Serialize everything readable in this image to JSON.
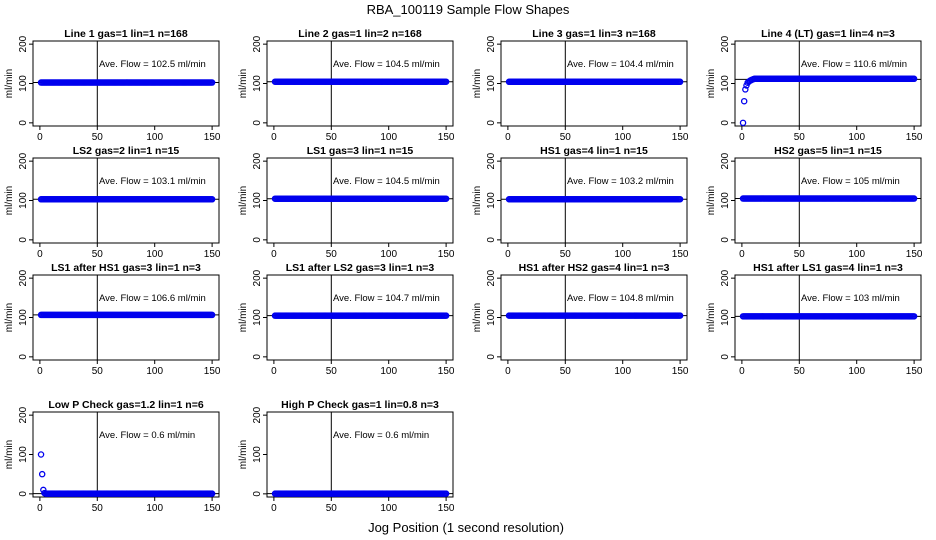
{
  "title": "RBA_100119  Sample Flow Shapes",
  "xlabel": "Jog Position (1 second resolution)",
  "colors": {
    "points": "#0000ee",
    "axes": "#000000",
    "background": "#ffffff"
  },
  "chart_data": [
    {
      "type": "scatter",
      "title": "Line 1 gas=1 lin=1 n=168",
      "ylabel": "ml/min",
      "xlim": [
        0,
        150
      ],
      "ylim": [
        0,
        200
      ],
      "xticks": [
        0,
        50,
        100,
        150
      ],
      "yticks": [
        0,
        100,
        200
      ],
      "vline": 50,
      "hline": 102.5,
      "annotation": "Ave. Flow =  102.5  ml/min",
      "x": [
        1,
        150
      ],
      "y": [
        102.5,
        102.5
      ]
    },
    {
      "type": "scatter",
      "title": "Line 2 gas=1 lin=2 n=168",
      "ylabel": "ml/min",
      "xlim": [
        0,
        150
      ],
      "ylim": [
        0,
        200
      ],
      "xticks": [
        0,
        50,
        100,
        150
      ],
      "yticks": [
        0,
        100,
        200
      ],
      "vline": 50,
      "hline": 104.5,
      "annotation": "Ave. Flow =  104.5  ml/min",
      "x": [
        1,
        150
      ],
      "y": [
        104.5,
        104.5
      ]
    },
    {
      "type": "scatter",
      "title": "Line 3 gas=1 lin=3 n=168",
      "ylabel": "ml/min",
      "xlim": [
        0,
        150
      ],
      "ylim": [
        0,
        200
      ],
      "xticks": [
        0,
        50,
        100,
        150
      ],
      "yticks": [
        0,
        100,
        200
      ],
      "vline": 50,
      "hline": 104.4,
      "annotation": "Ave. Flow =  104.4  ml/min",
      "x": [
        1,
        150
      ],
      "y": [
        104.4,
        104.4
      ]
    },
    {
      "type": "scatter",
      "title": "Line 4 (LT) gas=1 lin=4 n=3",
      "ylabel": "ml/min",
      "xlim": [
        0,
        150
      ],
      "ylim": [
        0,
        200
      ],
      "xticks": [
        0,
        50,
        100,
        150
      ],
      "yticks": [
        0,
        100,
        200
      ],
      "vline": 50,
      "hline": 110.6,
      "annotation": "Ave. Flow =  110.6  ml/min",
      "x": [
        1,
        2,
        3,
        4,
        5,
        7,
        9,
        11,
        150
      ],
      "y": [
        0,
        55,
        85,
        95,
        102,
        107,
        110,
        112,
        112
      ]
    },
    {
      "type": "scatter",
      "title": "LS2 gas=2 lin=1 n=15",
      "ylabel": "ml/min",
      "xlim": [
        0,
        150
      ],
      "ylim": [
        0,
        200
      ],
      "xticks": [
        0,
        50,
        100,
        150
      ],
      "yticks": [
        0,
        100,
        200
      ],
      "vline": 50,
      "hline": 103.1,
      "annotation": "Ave. Flow =  103.1  ml/min",
      "x": [
        1,
        150
      ],
      "y": [
        103.1,
        103.1
      ]
    },
    {
      "type": "scatter",
      "title": "LS1 gas=3 lin=1 n=15",
      "ylabel": "ml/min",
      "xlim": [
        0,
        150
      ],
      "ylim": [
        0,
        200
      ],
      "xticks": [
        0,
        50,
        100,
        150
      ],
      "yticks": [
        0,
        100,
        200
      ],
      "vline": 50,
      "hline": 104.5,
      "annotation": "Ave. Flow =  104.5  ml/min",
      "x": [
        1,
        150
      ],
      "y": [
        104.5,
        104.5
      ]
    },
    {
      "type": "scatter",
      "title": "HS1 gas=4 lin=1 n=15",
      "ylabel": "ml/min",
      "xlim": [
        0,
        150
      ],
      "ylim": [
        0,
        200
      ],
      "xticks": [
        0,
        50,
        100,
        150
      ],
      "yticks": [
        0,
        100,
        200
      ],
      "vline": 50,
      "hline": 103.2,
      "annotation": "Ave. Flow =  103.2  ml/min",
      "x": [
        1,
        150
      ],
      "y": [
        103.2,
        103.2
      ]
    },
    {
      "type": "scatter",
      "title": "HS2 gas=5 lin=1 n=15",
      "ylabel": "ml/min",
      "xlim": [
        0,
        150
      ],
      "ylim": [
        0,
        200
      ],
      "xticks": [
        0,
        50,
        100,
        150
      ],
      "yticks": [
        0,
        100,
        200
      ],
      "vline": 50,
      "hline": 105,
      "annotation": "Ave. Flow =  105  ml/min",
      "x": [
        1,
        150
      ],
      "y": [
        105,
        105
      ]
    },
    {
      "type": "scatter",
      "title": "LS1 after HS1 gas=3 lin=1 n=3",
      "ylabel": "ml/min",
      "xlim": [
        0,
        150
      ],
      "ylim": [
        0,
        200
      ],
      "xticks": [
        0,
        50,
        100,
        150
      ],
      "yticks": [
        0,
        100,
        200
      ],
      "vline": 50,
      "hline": 106.6,
      "annotation": "Ave. Flow =  106.6  ml/min",
      "x": [
        1,
        150
      ],
      "y": [
        106.6,
        106.6
      ]
    },
    {
      "type": "scatter",
      "title": "LS1 after LS2 gas=3 lin=1 n=3",
      "ylabel": "ml/min",
      "xlim": [
        0,
        150
      ],
      "ylim": [
        0,
        200
      ],
      "xticks": [
        0,
        50,
        100,
        150
      ],
      "yticks": [
        0,
        100,
        200
      ],
      "vline": 50,
      "hline": 104.7,
      "annotation": "Ave. Flow =  104.7  ml/min",
      "x": [
        1,
        150
      ],
      "y": [
        104.7,
        104.7
      ]
    },
    {
      "type": "scatter",
      "title": "HS1 after HS2 gas=4 lin=1 n=3",
      "ylabel": "ml/min",
      "xlim": [
        0,
        150
      ],
      "ylim": [
        0,
        200
      ],
      "xticks": [
        0,
        50,
        100,
        150
      ],
      "yticks": [
        0,
        100,
        200
      ],
      "vline": 50,
      "hline": 104.8,
      "annotation": "Ave. Flow =  104.8  ml/min",
      "x": [
        1,
        150
      ],
      "y": [
        104.8,
        104.8
      ]
    },
    {
      "type": "scatter",
      "title": "HS1 after LS1 gas=4 lin=1 n=3",
      "ylabel": "ml/min",
      "xlim": [
        0,
        150
      ],
      "ylim": [
        0,
        200
      ],
      "xticks": [
        0,
        50,
        100,
        150
      ],
      "yticks": [
        0,
        100,
        200
      ],
      "vline": 50,
      "hline": 103,
      "annotation": "Ave. Flow =  103  ml/min",
      "x": [
        1,
        150
      ],
      "y": [
        103,
        103
      ]
    },
    {
      "type": "scatter",
      "title": "Low P Check gas=1.2 lin=1 n=6",
      "ylabel": "ml/min",
      "xlim": [
        0,
        150
      ],
      "ylim": [
        0,
        200
      ],
      "xticks": [
        0,
        50,
        100,
        150
      ],
      "yticks": [
        0,
        100,
        200
      ],
      "vline": 50,
      "hline": 0.6,
      "annotation": "Ave. Flow =  0.6  ml/min",
      "x": [
        1,
        2,
        3,
        4,
        5,
        150
      ],
      "y": [
        100,
        50,
        10,
        2,
        0.6,
        0.6
      ]
    },
    {
      "type": "scatter",
      "title": "High P Check gas=1 lin=0.8 n=3",
      "ylabel": "ml/min",
      "xlim": [
        0,
        150
      ],
      "ylim": [
        0,
        200
      ],
      "xticks": [
        0,
        50,
        100,
        150
      ],
      "yticks": [
        0,
        100,
        200
      ],
      "vline": 50,
      "hline": 0.6,
      "annotation": "Ave. Flow =  0.6  ml/min",
      "x": [
        1,
        150
      ],
      "y": [
        0.6,
        0.6
      ]
    }
  ]
}
